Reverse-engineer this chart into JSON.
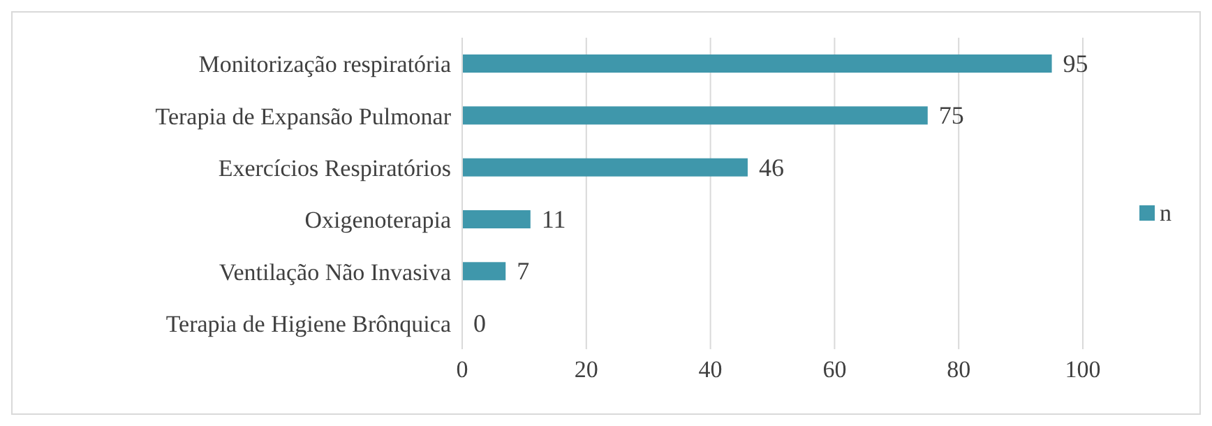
{
  "chart_data": {
    "type": "bar",
    "orientation": "horizontal",
    "categories": [
      "Monitorização respiratória",
      "Terapia de Expansão Pulmonar",
      "Exercícios Respiratórios",
      "Oxigenoterapia",
      "Ventilação Não Invasiva",
      "Terapia de Higiene Brônquica"
    ],
    "series": [
      {
        "name": "n",
        "color": "#3f97ab",
        "values": [
          95,
          75,
          46,
          11,
          7,
          0
        ]
      }
    ],
    "xlim": [
      0,
      100
    ],
    "xticks": [
      0,
      20,
      40,
      60,
      80,
      100
    ],
    "grid": "x",
    "legend": "right",
    "data_labels": true
  }
}
